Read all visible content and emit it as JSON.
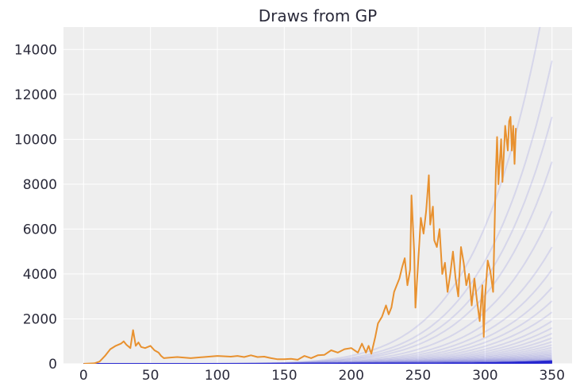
{
  "chart_data": {
    "type": "line",
    "title": "Draws from GP",
    "xlabel": "",
    "ylabel": "",
    "xlim": [
      -15,
      365
    ],
    "ylim": [
      0,
      15000
    ],
    "xticks": [
      0,
      50,
      100,
      150,
      200,
      250,
      300,
      350
    ],
    "yticks": [
      0,
      2000,
      4000,
      6000,
      8000,
      10000,
      12000,
      14000
    ],
    "grid": true,
    "colors": {
      "background": "#eeeeee",
      "grid": "#ffffff",
      "observed": "#e8912f",
      "draws": "#2b2bd0"
    },
    "observed": {
      "x": [
        0,
        8,
        12,
        16,
        20,
        24,
        28,
        30,
        32,
        35,
        37,
        39,
        41,
        43,
        46,
        50,
        53,
        56,
        58,
        60,
        65,
        70,
        80,
        90,
        100,
        110,
        115,
        120,
        125,
        130,
        135,
        140,
        145,
        150,
        155,
        160,
        165,
        170,
        175,
        180,
        185,
        190,
        195,
        200,
        205,
        208,
        211,
        213,
        215,
        218,
        220,
        223,
        226,
        228,
        230,
        232,
        234,
        236,
        238,
        240,
        242,
        244,
        245,
        247,
        248,
        250,
        252,
        254,
        256,
        258,
        259,
        261,
        262,
        264,
        266,
        268,
        270,
        272,
        274,
        276,
        278,
        280,
        282,
        284,
        286,
        288,
        290,
        292,
        294,
        296,
        298,
        299,
        300,
        302,
        304,
        306,
        308,
        309,
        310,
        312,
        313,
        315,
        317,
        318,
        319,
        320,
        321,
        322,
        323
      ],
      "y": [
        0,
        20,
        100,
        350,
        650,
        800,
        900,
        1000,
        850,
        700,
        1500,
        800,
        950,
        750,
        700,
        800,
        600,
        500,
        350,
        250,
        280,
        300,
        250,
        300,
        350,
        320,
        350,
        300,
        380,
        300,
        320,
        250,
        200,
        200,
        220,
        180,
        350,
        250,
        380,
        400,
        600,
        500,
        650,
        700,
        500,
        900,
        500,
        800,
        450,
        1200,
        1800,
        2100,
        2600,
        2200,
        2500,
        3200,
        3500,
        3800,
        4300,
        4700,
        3500,
        4200,
        7500,
        5000,
        2500,
        4500,
        6500,
        5800,
        6800,
        8400,
        6200,
        7000,
        5500,
        5200,
        6000,
        4000,
        4500,
        3200,
        4000,
        5000,
        3800,
        3000,
        5200,
        4500,
        3500,
        4000,
        2600,
        3800,
        2800,
        1900,
        3500,
        1200,
        3000,
        4600,
        4100,
        3200,
        8500,
        10100,
        8000,
        10000,
        8100,
        10600,
        9500,
        10800,
        11000,
        9500,
        10600,
        8900,
        10500
      ]
    },
    "draw_scales": [
      18000,
      13500,
      11000,
      9000,
      6800,
      5200,
      4200,
      3400,
      2800,
      2300,
      1900,
      1600,
      1350,
      1150,
      980,
      840,
      720,
      620,
      540,
      470,
      410,
      360,
      310,
      270,
      235,
      205,
      180,
      160,
      140,
      125
    ]
  }
}
